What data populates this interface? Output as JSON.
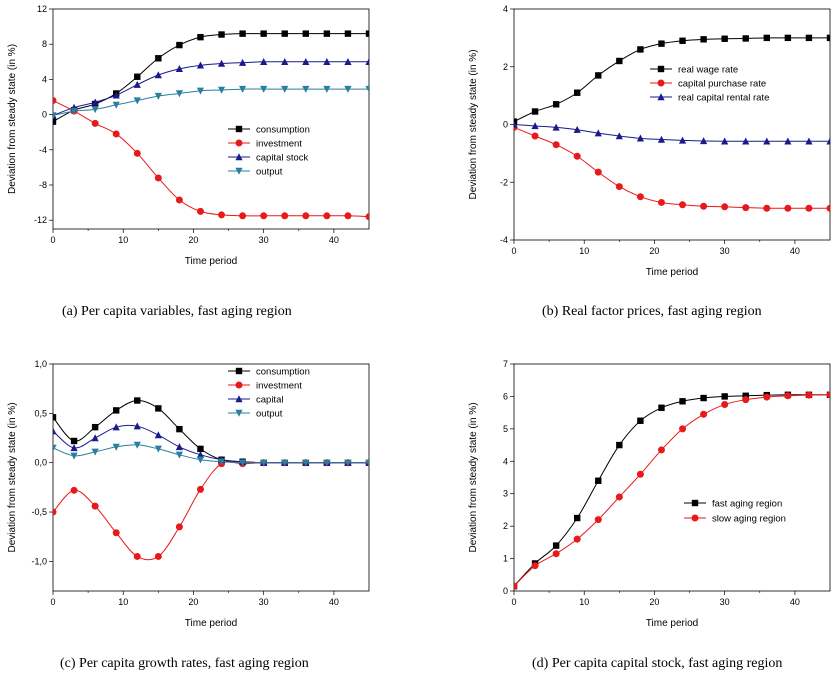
{
  "figure": {
    "captions": [
      "(a) Per capita variables, fast aging region",
      "(b) Real factor prices, fast aging region",
      "(c) Per capita growth rates, fast aging region",
      "(d) Per capita capital stock, fast aging region"
    ]
  },
  "chart_data": [
    {
      "type": "line",
      "xlabel": "Time period",
      "ylabel": "Deviation from steady state (in %)",
      "xlim": [
        0,
        45
      ],
      "ylim": [
        -13,
        12
      ],
      "xticks": [
        0,
        10,
        20,
        30,
        40
      ],
      "yticks": [
        -12,
        -8,
        -4,
        0,
        4,
        8,
        12
      ],
      "ytick_labels": [
        "-12",
        "-8",
        "-4",
        "0",
        "4",
        "8",
        "12"
      ],
      "legend_position": "center-right",
      "x": [
        0,
        3,
        6,
        9,
        12,
        15,
        18,
        21,
        24,
        27,
        30,
        33,
        36,
        39,
        42,
        45
      ],
      "series": [
        {
          "name": "consumption",
          "color": "#000000",
          "marker": "square",
          "values": [
            -0.8,
            0.5,
            1.2,
            2.4,
            4.3,
            6.4,
            7.9,
            8.8,
            9.1,
            9.2,
            9.2,
            9.2,
            9.2,
            9.2,
            9.2,
            9.2
          ]
        },
        {
          "name": "investment",
          "color": "#e8191a",
          "marker": "circle",
          "values": [
            1.6,
            0.4,
            -1.0,
            -2.2,
            -4.4,
            -7.2,
            -9.7,
            -11.0,
            -11.4,
            -11.5,
            -11.5,
            -11.5,
            -11.5,
            -11.5,
            -11.5,
            -11.6
          ]
        },
        {
          "name": "capital stock",
          "color": "#1a1a8c",
          "marker": "triangle-up",
          "values": [
            -0.1,
            0.8,
            1.4,
            2.2,
            3.4,
            4.5,
            5.2,
            5.6,
            5.8,
            5.9,
            6.0,
            6.0,
            6.0,
            6.0,
            6.0,
            6.0
          ]
        },
        {
          "name": "output",
          "color": "#2a7f9f",
          "marker": "triangle-down",
          "values": [
            -0.1,
            0.4,
            0.6,
            1.1,
            1.6,
            2.1,
            2.4,
            2.7,
            2.8,
            2.9,
            2.9,
            2.9,
            2.9,
            2.9,
            2.9,
            2.9
          ]
        }
      ]
    },
    {
      "type": "line",
      "xlabel": "Time period",
      "ylabel": "Deviation from steady state (in %)",
      "xlim": [
        0,
        45
      ],
      "ylim": [
        -4,
        4
      ],
      "xticks": [
        0,
        10,
        20,
        30,
        40
      ],
      "yticks": [
        -4,
        -2,
        0,
        2,
        4
      ],
      "ytick_labels": [
        "-4",
        "-2",
        "0",
        "2",
        "4"
      ],
      "legend_position": "center-right",
      "x": [
        0,
        3,
        6,
        9,
        12,
        15,
        18,
        21,
        24,
        27,
        30,
        33,
        36,
        39,
        42,
        45
      ],
      "series": [
        {
          "name": "real wage rate",
          "color": "#000000",
          "marker": "square",
          "values": [
            0.1,
            0.45,
            0.7,
            1.1,
            1.7,
            2.2,
            2.6,
            2.8,
            2.9,
            2.95,
            2.97,
            2.98,
            3.0,
            3.0,
            3.0,
            3.0
          ]
        },
        {
          "name": "capital purchase rate",
          "color": "#e8191a",
          "marker": "circle",
          "values": [
            -0.1,
            -0.4,
            -0.7,
            -1.1,
            -1.65,
            -2.15,
            -2.5,
            -2.7,
            -2.78,
            -2.83,
            -2.85,
            -2.88,
            -2.9,
            -2.9,
            -2.9,
            -2.9
          ]
        },
        {
          "name": "real capital rental rate",
          "color": "#1a1a8c",
          "marker": "triangle-up",
          "values": [
            0.0,
            -0.05,
            -0.1,
            -0.18,
            -0.3,
            -0.4,
            -0.48,
            -0.52,
            -0.55,
            -0.57,
            -0.58,
            -0.58,
            -0.58,
            -0.58,
            -0.58,
            -0.58
          ]
        }
      ]
    },
    {
      "type": "line",
      "xlabel": "Time period",
      "ylabel": "Deviation from steady state (in %)",
      "xlim": [
        0,
        45
      ],
      "ylim": [
        -1.3,
        1.0
      ],
      "xticks": [
        0,
        10,
        20,
        30,
        40
      ],
      "yticks": [
        -1.0,
        -0.5,
        0.0,
        0.5,
        1.0
      ],
      "ytick_labels": [
        "-1,0",
        "-0,5",
        "0,0",
        "0,5",
        "1,0"
      ],
      "legend_position": "top-right",
      "x": [
        0,
        3,
        6,
        9,
        12,
        15,
        18,
        21,
        24,
        27,
        30,
        33,
        36,
        39,
        42,
        45
      ],
      "series": [
        {
          "name": "consumption",
          "color": "#000000",
          "marker": "square",
          "values": [
            0.46,
            0.22,
            0.36,
            0.53,
            0.63,
            0.55,
            0.34,
            0.14,
            0.03,
            0.01,
            0.0,
            0.0,
            0.0,
            0.0,
            0.0,
            0.0
          ]
        },
        {
          "name": "investment",
          "color": "#e8191a",
          "marker": "circle",
          "values": [
            -0.5,
            -0.28,
            -0.44,
            -0.71,
            -0.95,
            -0.95,
            -0.65,
            -0.27,
            -0.01,
            -0.01,
            0.0,
            0.0,
            0.0,
            0.0,
            0.0,
            0.0
          ]
        },
        {
          "name": "capital",
          "color": "#1a1a8c",
          "marker": "triangle-up",
          "values": [
            0.32,
            0.15,
            0.25,
            0.36,
            0.37,
            0.28,
            0.16,
            0.08,
            0.03,
            0.01,
            0.0,
            0.0,
            0.0,
            0.0,
            0.0,
            0.0
          ]
        },
        {
          "name": "output",
          "color": "#2a7f9f",
          "marker": "triangle-down",
          "values": [
            0.15,
            0.07,
            0.11,
            0.16,
            0.18,
            0.14,
            0.08,
            0.03,
            0.01,
            0.0,
            0.0,
            0.0,
            0.0,
            0.0,
            0.0,
            0.0
          ]
        }
      ]
    },
    {
      "type": "line",
      "xlabel": "Time period",
      "ylabel": "Deviation from steady state (in %)",
      "xlim": [
        0,
        45
      ],
      "ylim": [
        0,
        7
      ],
      "xticks": [
        0,
        10,
        20,
        30,
        40
      ],
      "yticks": [
        0,
        1,
        2,
        3,
        4,
        5,
        6,
        7
      ],
      "ytick_labels": [
        "0",
        "1",
        "2",
        "3",
        "4",
        "5",
        "6",
        "7"
      ],
      "legend_position": "center-right",
      "x": [
        0,
        3,
        6,
        9,
        12,
        15,
        18,
        21,
        24,
        27,
        30,
        33,
        36,
        39,
        42,
        45
      ],
      "series": [
        {
          "name": "fast aging region",
          "color": "#000000",
          "marker": "square",
          "values": [
            0.15,
            0.85,
            1.4,
            2.25,
            3.4,
            4.5,
            5.25,
            5.65,
            5.85,
            5.95,
            6.0,
            6.02,
            6.04,
            6.05,
            6.05,
            6.05
          ]
        },
        {
          "name": "slow aging region",
          "color": "#e8191a",
          "marker": "circle",
          "values": [
            0.15,
            0.78,
            1.15,
            1.6,
            2.2,
            2.9,
            3.6,
            4.35,
            5.0,
            5.45,
            5.75,
            5.9,
            5.98,
            6.02,
            6.04,
            6.05
          ]
        }
      ]
    }
  ]
}
